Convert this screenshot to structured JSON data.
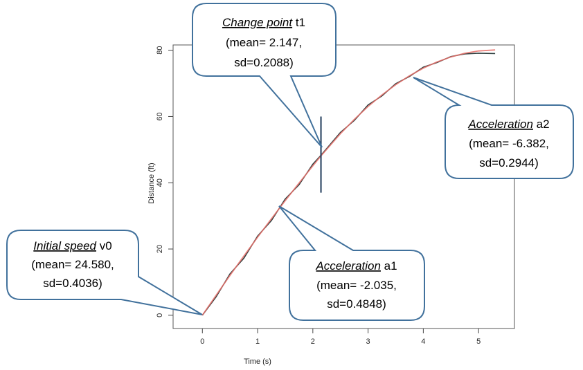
{
  "chart_data": {
    "type": "line",
    "xlabel": "Time (s)",
    "ylabel": "Distance (ft)",
    "xlim": [
      -0.53,
      5.65
    ],
    "ylim": [
      -4,
      81.6
    ],
    "xticks": [
      0,
      1,
      2,
      3,
      4,
      5
    ],
    "yticks": [
      0,
      20,
      40,
      60,
      80
    ],
    "x": [
      0,
      0.25,
      0.5,
      0.75,
      1.0,
      1.25,
      1.5,
      1.75,
      2.0,
      2.147,
      2.5,
      2.75,
      3.0,
      3.25,
      3.5,
      3.75,
      4.0,
      4.25,
      4.5,
      4.75,
      5.0,
      5.3
    ],
    "series": [
      {
        "color": "#2f3f3f",
        "values": [
          0,
          5.6,
          12.5,
          17.2,
          23.9,
          28.6,
          35.1,
          39.4,
          45.6,
          48.3,
          55.2,
          58.8,
          63.5,
          66.2,
          69.9,
          72.1,
          74.9,
          76.3,
          78.1,
          78.9,
          79.1,
          79.0
        ]
      },
      {
        "color": "#e8706a",
        "values": [
          0,
          6.08,
          12.04,
          17.86,
          23.56,
          29.14,
          34.58,
          39.9,
          45.09,
          48.1,
          54.83,
          59.13,
          63.02,
          66.51,
          69.6,
          72.3,
          74.59,
          76.49,
          77.98,
          79.09,
          79.79,
          80.1
        ]
      }
    ],
    "change_point_line": {
      "x": 2.147,
      "y": [
        37,
        60
      ]
    },
    "annotations": [
      {
        "label": "Change point",
        "symbol": " t1",
        "lines": [
          "(mean= 2.147,",
          "sd=0.2088)"
        ]
      },
      {
        "label": "Acceleration",
        "symbol": " a2",
        "lines": [
          "(mean= -6.382,",
          "sd=0.2944)"
        ]
      },
      {
        "label": "Initial speed",
        "symbol": " v0",
        "lines": [
          "(mean= 24.580,",
          "sd=0.4036)"
        ]
      },
      {
        "label": "Acceleration",
        "symbol": " a1",
        "lines": [
          "(mean= -2.035,",
          "sd=0.4848)"
        ]
      }
    ]
  }
}
